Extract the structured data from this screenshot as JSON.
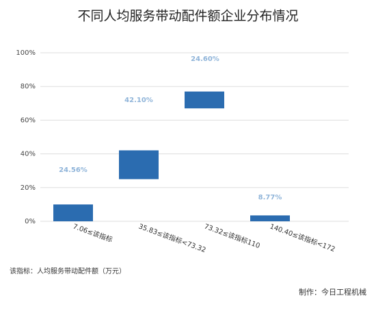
{
  "chart_data": {
    "type": "floating-bar",
    "title": "不同人均服务带动配件额企业分布情况",
    "categories": [
      "7.06≤该指标",
      "35.83≤该指标<73.32",
      "73.32≤该指标110",
      "140.40≤该指标<172"
    ],
    "low": [
      0,
      25,
      67,
      0
    ],
    "high": [
      10,
      42.1,
      77,
      3.5
    ],
    "color": "#2b6cb0",
    "annotations": [
      "24.56%",
      "42.10%",
      "24.60%",
      "8.77%"
    ],
    "ylim": [
      0,
      100
    ],
    "yticks": [
      {
        "value": 0,
        "label": "0%"
      },
      {
        "value": 20,
        "label": "20%"
      },
      {
        "value": 40,
        "label": "40%"
      },
      {
        "value": 60,
        "label": "60%"
      },
      {
        "value": 80,
        "label": "80%"
      },
      {
        "value": 100,
        "label": "100%"
      }
    ],
    "grid": true,
    "note": "该指标：人均服务带动配件额（万元）",
    "source": "制作：今日工程机械"
  }
}
